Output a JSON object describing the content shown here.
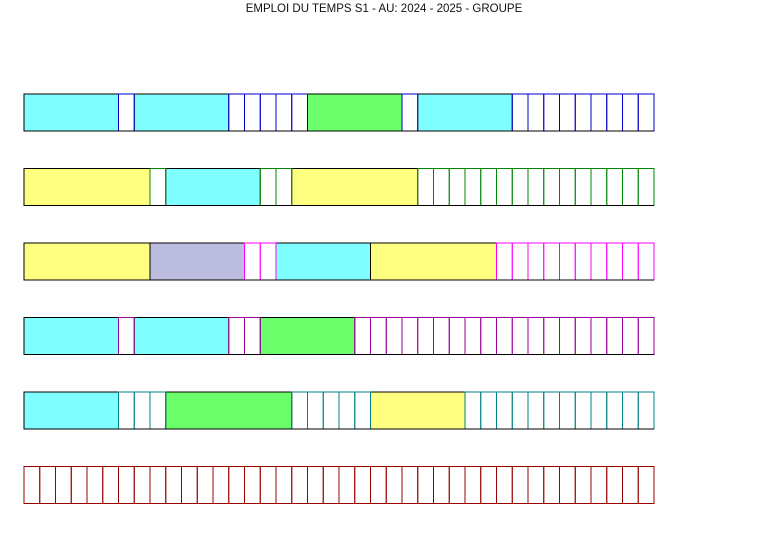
{
  "title": "EMPLOI DU TEMPS S1 - AU: 2024 - 2025 - GROUPE",
  "chart_data": {
    "type": "timetable",
    "slot_count": 40,
    "colors": {
      "cyan": "#7fffff",
      "yellow": "#ffff80",
      "green": "#6cff6c",
      "lavender": "#bcbce0"
    },
    "rows": [
      {
        "grid_color": "#0000cc",
        "blocks": [
          {
            "start": 0,
            "length": 6,
            "color": "cyan"
          },
          {
            "start": 7,
            "length": 6,
            "color": "cyan"
          },
          {
            "start": 18,
            "length": 6,
            "color": "green"
          },
          {
            "start": 25,
            "length": 6,
            "color": "cyan"
          }
        ]
      },
      {
        "grid_color": "#008800",
        "blocks": [
          {
            "start": 0,
            "length": 8,
            "color": "yellow"
          },
          {
            "start": 9,
            "length": 6,
            "color": "cyan"
          },
          {
            "start": 17,
            "length": 8,
            "color": "yellow"
          }
        ]
      },
      {
        "grid_color": "#ff00ff",
        "blocks": [
          {
            "start": 0,
            "length": 8,
            "color": "yellow"
          },
          {
            "start": 8,
            "length": 6,
            "color": "lavender"
          },
          {
            "start": 16,
            "length": 6,
            "color": "cyan"
          },
          {
            "start": 22,
            "length": 8,
            "color": "yellow"
          }
        ]
      },
      {
        "grid_color": "#990099",
        "blocks": [
          {
            "start": 0,
            "length": 6,
            "color": "cyan"
          },
          {
            "start": 7,
            "length": 6,
            "color": "cyan"
          },
          {
            "start": 15,
            "length": 6,
            "color": "green"
          }
        ]
      },
      {
        "grid_color": "#008080",
        "blocks": [
          {
            "start": 0,
            "length": 6,
            "color": "cyan"
          },
          {
            "start": 9,
            "length": 8,
            "color": "green"
          },
          {
            "start": 22,
            "length": 6,
            "color": "yellow"
          }
        ]
      },
      {
        "grid_color": "#990000",
        "blocks": []
      }
    ]
  }
}
